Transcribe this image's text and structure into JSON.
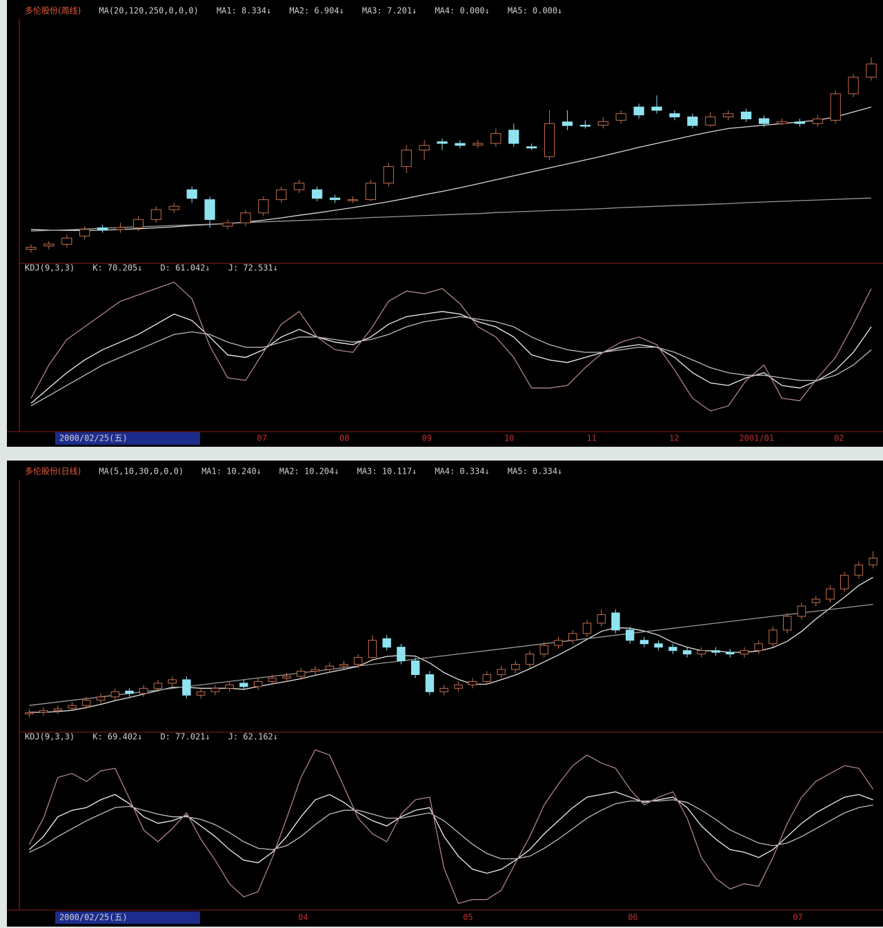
{
  "chart_data": [
    {
      "type": "candlestick",
      "title": "多伦股份(周线)",
      "indicator": "MA(20,120,250,0,0,0)",
      "readouts": [
        "MA1: 8.334↓",
        "MA2: 6.904↓",
        "MA3: 7.201↓",
        "MA4: 0.000↓",
        "MA5: 0.000↓"
      ],
      "up_color": "#c8704c",
      "down_color": "#8fe3f0",
      "ylim": [
        6,
        13
      ],
      "open": [
        6.3,
        6.4,
        6.45,
        6.7,
        6.95,
        6.9,
        6.95,
        7.2,
        7.5,
        8.1,
        7.8,
        7.0,
        7.1,
        7.4,
        7.8,
        8.1,
        8.1,
        7.85,
        7.8,
        7.8,
        8.3,
        8.8,
        9.3,
        9.55,
        9.5,
        9.45,
        9.5,
        9.9,
        9.4,
        9.1,
        10.15,
        10.05,
        10.05,
        10.2,
        10.6,
        10.6,
        10.4,
        10.3,
        10.05,
        10.3,
        10.45,
        10.25,
        10.1,
        10.15,
        10.1,
        10.2,
        11.0,
        11.5
      ],
      "high": [
        6.45,
        6.55,
        6.75,
        7.0,
        7.05,
        7.1,
        7.3,
        7.6,
        7.7,
        8.2,
        7.9,
        7.2,
        7.5,
        7.9,
        8.2,
        8.4,
        8.2,
        7.95,
        7.9,
        8.4,
        8.9,
        9.45,
        9.6,
        9.65,
        9.6,
        9.6,
        9.95,
        10.1,
        9.5,
        10.5,
        10.5,
        10.2,
        10.3,
        10.5,
        10.7,
        10.95,
        10.5,
        10.4,
        10.45,
        10.5,
        10.55,
        10.35,
        10.25,
        10.25,
        10.35,
        11.1,
        11.6,
        12.1
      ],
      "low": [
        6.2,
        6.3,
        6.35,
        6.6,
        6.8,
        6.8,
        6.85,
        7.1,
        7.4,
        7.7,
        6.95,
        6.9,
        7.0,
        7.3,
        7.7,
        8.0,
        7.75,
        7.7,
        7.7,
        7.75,
        8.2,
        8.6,
        9.0,
        9.3,
        9.35,
        9.35,
        9.4,
        9.4,
        9.3,
        9.0,
        9.9,
        9.95,
        9.95,
        10.1,
        10.25,
        10.4,
        10.2,
        9.95,
        10.0,
        10.2,
        10.15,
        10.0,
        10.05,
        10.0,
        10.0,
        10.1,
        10.9,
        11.4
      ],
      "close": [
        6.36,
        6.46,
        6.64,
        6.9,
        6.88,
        6.96,
        7.2,
        7.5,
        7.6,
        7.84,
        7.2,
        7.1,
        7.4,
        7.8,
        8.1,
        8.3,
        7.84,
        7.8,
        7.8,
        8.3,
        8.8,
        9.3,
        9.44,
        9.5,
        9.44,
        9.5,
        9.8,
        9.5,
        9.36,
        10.1,
        10.04,
        10.04,
        10.16,
        10.4,
        10.36,
        10.5,
        10.3,
        10.04,
        10.3,
        10.4,
        10.24,
        10.1,
        10.16,
        10.1,
        10.24,
        11.0,
        11.5,
        11.9
      ],
      "series": [
        {
          "color": "#d8d8d8",
          "values": [
            6.9,
            6.88,
            6.87,
            6.87,
            6.88,
            6.9,
            6.92,
            6.95,
            6.98,
            7.02,
            7.05,
            7.08,
            7.12,
            7.18,
            7.25,
            7.33,
            7.4,
            7.48,
            7.56,
            7.65,
            7.74,
            7.84,
            7.95,
            8.05,
            8.16,
            8.28,
            8.4,
            8.52,
            8.64,
            8.76,
            8.88,
            9.0,
            9.12,
            9.25,
            9.38,
            9.5,
            9.62,
            9.74,
            9.85,
            9.95,
            10.0,
            10.05,
            10.1,
            10.15,
            10.2,
            10.3,
            10.45,
            10.6
          ]
        },
        {
          "color": "#9a9a9a",
          "values": [
            6.85,
            6.87,
            6.89,
            6.91,
            6.94,
            6.96,
            6.98,
            7.0,
            7.02,
            7.04,
            7.06,
            7.08,
            7.11,
            7.13,
            7.15,
            7.17,
            7.19,
            7.21,
            7.23,
            7.26,
            7.28,
            7.3,
            7.32,
            7.34,
            7.36,
            7.38,
            7.41,
            7.43,
            7.45,
            7.47,
            7.49,
            7.51,
            7.53,
            7.56,
            7.58,
            7.6,
            7.62,
            7.64,
            7.66,
            7.68,
            7.71,
            7.73,
            7.75,
            7.77,
            7.79,
            7.81,
            7.83,
            7.85
          ]
        }
      ]
    },
    {
      "type": "line",
      "title": "KDJ(9,3,3)",
      "ylim": [
        -10,
        110
      ],
      "series": [
        {
          "name": "K: 70.205↓",
          "color": "#f2f2f2",
          "values": [
            10,
            22,
            34,
            44,
            52,
            58,
            64,
            72,
            80,
            75,
            62,
            48,
            46,
            52,
            62,
            68,
            62,
            58,
            56,
            62,
            72,
            78,
            80,
            82,
            80,
            74,
            70,
            62,
            48,
            44,
            42,
            46,
            50,
            54,
            56,
            54,
            46,
            34,
            26,
            24,
            30,
            34,
            24,
            22,
            28,
            36,
            50,
            70
          ]
        },
        {
          "name": "D: 61.042↓",
          "color": "#bdbdbd",
          "values": [
            8,
            16,
            24,
            32,
            40,
            46,
            52,
            58,
            64,
            66,
            64,
            58,
            54,
            54,
            58,
            62,
            62,
            60,
            58,
            60,
            64,
            70,
            74,
            76,
            78,
            76,
            74,
            70,
            62,
            56,
            52,
            50,
            50,
            52,
            54,
            54,
            50,
            44,
            38,
            34,
            32,
            32,
            30,
            28,
            28,
            32,
            40,
            52
          ]
        },
        {
          "name": "J: 72.531↓",
          "color": "#b08585",
          "values": [
            14,
            40,
            60,
            70,
            80,
            90,
            95,
            100,
            105,
            92,
            55,
            30,
            28,
            50,
            72,
            82,
            62,
            52,
            50,
            68,
            90,
            98,
            96,
            100,
            88,
            70,
            62,
            46,
            22,
            22,
            24,
            38,
            50,
            58,
            62,
            56,
            36,
            14,
            4,
            8,
            28,
            40,
            14,
            12,
            30,
            46,
            72,
            100
          ]
        }
      ],
      "date": "2000/02/25(五)",
      "axis_labels": [
        "07",
        "08",
        "09",
        "10",
        "11",
        "12",
        "2001/01",
        "02"
      ]
    },
    {
      "type": "candlestick",
      "title": "多伦股份(日线)",
      "indicator": "MA(5,10,30,0,0,0)",
      "readouts": [
        "MA1: 10.240↓",
        "MA2: 10.204↓",
        "MA3: 10.117↓",
        "MA4: 0.334↓",
        "MA5: 0.334↓"
      ],
      "up_color": "#c8704c",
      "down_color": "#8fe3f0",
      "ylim": [
        6,
        13
      ],
      "open": [
        6.45,
        6.5,
        6.55,
        6.62,
        6.7,
        6.85,
        6.95,
        7.12,
        7.05,
        7.2,
        7.35,
        7.45,
        7.0,
        7.1,
        7.2,
        7.35,
        7.25,
        7.4,
        7.5,
        7.55,
        7.7,
        7.75,
        7.85,
        7.9,
        8.1,
        8.65,
        8.4,
        8.0,
        7.6,
        7.1,
        7.2,
        7.3,
        7.4,
        7.6,
        7.75,
        7.9,
        8.2,
        8.45,
        8.6,
        8.8,
        9.1,
        9.4,
        8.9,
        8.6,
        8.5,
        8.4,
        8.3,
        8.2,
        8.3,
        8.25,
        8.2,
        8.3,
        8.5,
        8.9,
        9.3,
        9.7,
        9.8,
        10.1,
        10.5,
        10.8
      ],
      "high": [
        6.6,
        6.65,
        6.7,
        6.8,
        6.95,
        7.05,
        7.2,
        7.2,
        7.3,
        7.45,
        7.55,
        7.55,
        7.2,
        7.3,
        7.4,
        7.45,
        7.5,
        7.6,
        7.65,
        7.8,
        7.85,
        7.95,
        8.0,
        8.2,
        8.75,
        8.75,
        8.5,
        8.1,
        7.7,
        7.3,
        7.4,
        7.5,
        7.7,
        7.85,
        8.0,
        8.3,
        8.55,
        8.7,
        8.9,
        9.2,
        9.5,
        9.5,
        9.0,
        8.7,
        8.6,
        8.5,
        8.4,
        8.4,
        8.4,
        8.35,
        8.4,
        8.6,
        9.0,
        9.4,
        9.7,
        9.9,
        10.2,
        10.6,
        10.9,
        11.2
      ],
      "low": [
        6.35,
        6.4,
        6.45,
        6.55,
        6.6,
        6.75,
        6.85,
        6.95,
        6.95,
        7.1,
        7.25,
        6.9,
        6.9,
        7.0,
        7.1,
        7.15,
        7.15,
        7.3,
        7.4,
        7.45,
        7.6,
        7.65,
        7.75,
        7.8,
        8.0,
        8.3,
        7.9,
        7.5,
        7.0,
        7.0,
        7.1,
        7.2,
        7.3,
        7.5,
        7.65,
        7.8,
        8.1,
        8.35,
        8.5,
        8.7,
        9.0,
        8.8,
        8.5,
        8.4,
        8.3,
        8.2,
        8.1,
        8.1,
        8.15,
        8.1,
        8.1,
        8.2,
        8.4,
        8.8,
        9.2,
        9.6,
        9.7,
        10.0,
        10.4,
        10.7
      ],
      "close": [
        6.49,
        6.55,
        6.6,
        6.7,
        6.85,
        6.95,
        7.1,
        7.05,
        7.2,
        7.35,
        7.45,
        7.0,
        7.1,
        7.2,
        7.3,
        7.25,
        7.4,
        7.5,
        7.55,
        7.7,
        7.75,
        7.85,
        7.9,
        8.1,
        8.6,
        8.4,
        8.0,
        7.6,
        7.1,
        7.2,
        7.3,
        7.4,
        7.6,
        7.75,
        7.9,
        8.2,
        8.45,
        8.6,
        8.8,
        9.1,
        9.35,
        8.9,
        8.6,
        8.5,
        8.4,
        8.3,
        8.2,
        8.3,
        8.25,
        8.2,
        8.3,
        8.5,
        8.9,
        9.3,
        9.6,
        9.8,
        10.1,
        10.5,
        10.8,
        11.0
      ],
      "series": [
        {
          "color": "#e6e6e6",
          "values": [
            6.5,
            6.5,
            6.52,
            6.56,
            6.64,
            6.73,
            6.84,
            6.93,
            7.03,
            7.13,
            7.23,
            7.23,
            7.2,
            7.2,
            7.2,
            7.17,
            7.25,
            7.33,
            7.4,
            7.48,
            7.58,
            7.67,
            7.75,
            7.84,
            8.03,
            8.13,
            8.16,
            8.14,
            7.94,
            7.66,
            7.46,
            7.32,
            7.32,
            7.45,
            7.59,
            7.77,
            7.97,
            8.17,
            8.39,
            8.63,
            8.86,
            8.97,
            8.95,
            8.87,
            8.75,
            8.54,
            8.4,
            8.3,
            8.29,
            8.25,
            8.25,
            8.29,
            8.39,
            8.57,
            8.86,
            9.22,
            9.54,
            9.86,
            10.2,
            10.44
          ]
        },
        {
          "color": "#9a9a9a",
          "values": [
            6.7,
            6.75,
            6.8,
            6.85,
            6.9,
            6.95,
            7.0,
            7.05,
            7.1,
            7.15,
            7.2,
            7.25,
            7.3,
            7.35,
            7.4,
            7.45,
            7.5,
            7.55,
            7.6,
            7.65,
            7.7,
            7.75,
            7.8,
            7.85,
            7.9,
            7.95,
            8.0,
            8.05,
            8.1,
            8.15,
            8.2,
            8.25,
            8.3,
            8.35,
            8.4,
            8.45,
            8.5,
            8.55,
            8.6,
            8.65,
            8.7,
            8.75,
            8.8,
            8.85,
            8.9,
            8.95,
            9.0,
            9.05,
            9.1,
            9.15,
            9.2,
            9.25,
            9.3,
            9.35,
            9.4,
            9.45,
            9.5,
            9.55,
            9.6,
            9.65
          ]
        }
      ]
    },
    {
      "type": "line",
      "title": "KDJ(9,3,3)",
      "ylim": [
        -15,
        110
      ],
      "series": [
        {
          "name": "K: 69.402↓",
          "color": "#f2f2f2",
          "values": [
            30,
            40,
            55,
            60,
            62,
            68,
            72,
            65,
            55,
            50,
            52,
            56,
            48,
            40,
            30,
            22,
            20,
            28,
            40,
            55,
            68,
            72,
            66,
            58,
            52,
            48,
            55,
            60,
            62,
            40,
            25,
            15,
            12,
            15,
            22,
            30,
            42,
            52,
            62,
            70,
            72,
            74,
            70,
            66,
            68,
            70,
            62,
            48,
            38,
            30,
            28,
            24,
            30,
            40,
            50,
            58,
            64,
            70,
            72,
            68
          ]
        },
        {
          "name": "D: 77.021↓",
          "color": "#bdbdbd",
          "values": [
            28,
            33,
            40,
            46,
            52,
            57,
            62,
            63,
            60,
            57,
            55,
            55,
            53,
            49,
            43,
            36,
            31,
            30,
            33,
            40,
            49,
            57,
            60,
            60,
            57,
            54,
            54,
            56,
            58,
            52,
            43,
            34,
            27,
            23,
            23,
            25,
            31,
            38,
            46,
            54,
            60,
            65,
            67,
            67,
            67,
            68,
            66,
            60,
            53,
            45,
            40,
            35,
            33,
            35,
            40,
            46,
            52,
            58,
            62,
            64
          ]
        },
        {
          "name": "J: 62.162↓",
          "color": "#b08585",
          "values": [
            34,
            54,
            85,
            88,
            82,
            90,
            92,
            69,
            45,
            36,
            46,
            58,
            38,
            22,
            4,
            -6,
            -2,
            24,
            54,
            85,
            106,
            102,
            78,
            54,
            42,
            36,
            57,
            68,
            70,
            16,
            -11,
            -8,
            -8,
            -1,
            20,
            40,
            64,
            80,
            94,
            102,
            96,
            92,
            76,
            64,
            70,
            74,
            54,
            24,
            8,
            0,
            4,
            2,
            24,
            50,
            70,
            82,
            88,
            94,
            92,
            76
          ]
        }
      ],
      "date": "2000/02/25(五)",
      "axis_labels": [
        "04",
        "05",
        "06",
        "07"
      ]
    }
  ]
}
